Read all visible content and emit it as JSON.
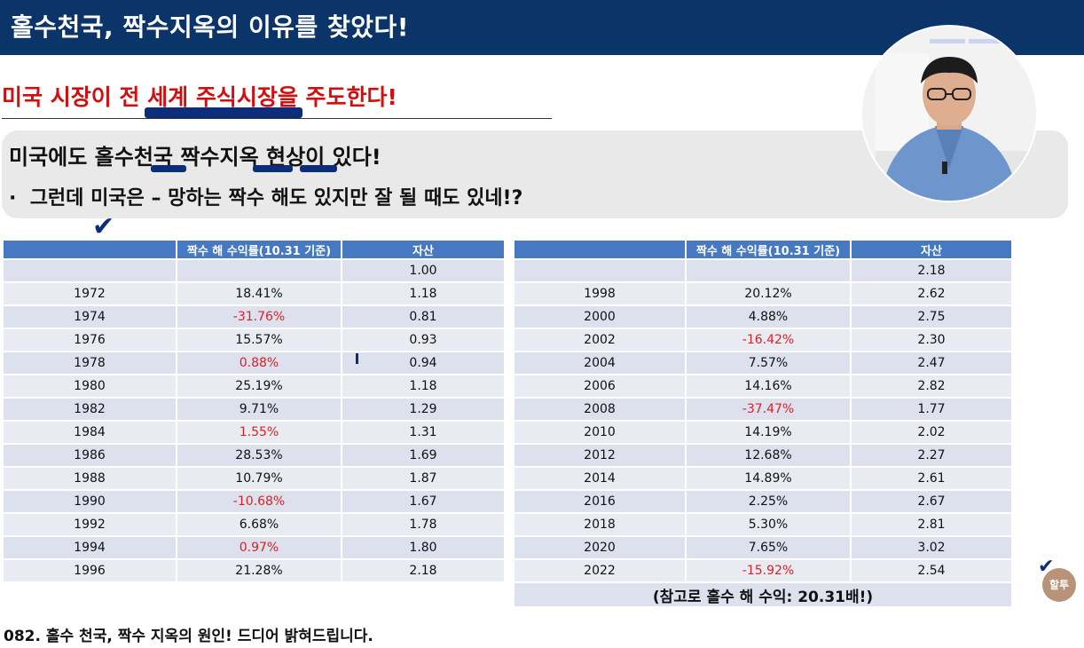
{
  "header": {
    "title": "홀수천국, 짝수지옥의 이유를 찾았다!"
  },
  "subtitle": "미국 시장이 전 세계 주식시장을 주도한다!",
  "callout": {
    "line1": "미국에도 홀수천국 짝수지옥 현상이 있다!",
    "bullet": "·",
    "line2": "그런데 미국은 – 망하는 짝수 해도 있지만 잘 될 때도 있네!?"
  },
  "tables": {
    "headers": {
      "blank": "",
      "return": "짝수 해 수익률(10.31 기준)",
      "asset": "자산"
    },
    "left": {
      "start_asset": "1.00",
      "rows": [
        {
          "year": "1972",
          "return": "18.41%",
          "asset": "1.18",
          "negative": false
        },
        {
          "year": "1974",
          "return": "-31.76%",
          "asset": "0.81",
          "negative": true
        },
        {
          "year": "1976",
          "return": "15.57%",
          "asset": "0.93",
          "negative": false
        },
        {
          "year": "1978",
          "return": "0.88%",
          "asset": "0.94",
          "negative": true
        },
        {
          "year": "1980",
          "return": "25.19%",
          "asset": "1.18",
          "negative": false
        },
        {
          "year": "1982",
          "return": "9.71%",
          "asset": "1.29",
          "negative": false
        },
        {
          "year": "1984",
          "return": "1.55%",
          "asset": "1.31",
          "negative": true
        },
        {
          "year": "1986",
          "return": "28.53%",
          "asset": "1.69",
          "negative": false
        },
        {
          "year": "1988",
          "return": "10.79%",
          "asset": "1.87",
          "negative": false
        },
        {
          "year": "1990",
          "return": "-10.68%",
          "asset": "1.67",
          "negative": true
        },
        {
          "year": "1992",
          "return": "6.68%",
          "asset": "1.78",
          "negative": false
        },
        {
          "year": "1994",
          "return": "0.97%",
          "asset": "1.80",
          "negative": true
        },
        {
          "year": "1996",
          "return": "21.28%",
          "asset": "2.18",
          "negative": false
        }
      ]
    },
    "right": {
      "start_asset": "2.18",
      "rows": [
        {
          "year": "1998",
          "return": "20.12%",
          "asset": "2.62",
          "negative": false
        },
        {
          "year": "2000",
          "return": "4.88%",
          "asset": "2.75",
          "negative": false
        },
        {
          "year": "2002",
          "return": "-16.42%",
          "asset": "2.30",
          "negative": true
        },
        {
          "year": "2004",
          "return": "7.57%",
          "asset": "2.47",
          "negative": false
        },
        {
          "year": "2006",
          "return": "14.16%",
          "asset": "2.82",
          "negative": false
        },
        {
          "year": "2008",
          "return": "-37.47%",
          "asset": "1.77",
          "negative": true
        },
        {
          "year": "2010",
          "return": "14.19%",
          "asset": "2.02",
          "negative": false
        },
        {
          "year": "2012",
          "return": "12.68%",
          "asset": "2.27",
          "negative": false
        },
        {
          "year": "2014",
          "return": "14.89%",
          "asset": "2.61",
          "negative": false
        },
        {
          "year": "2016",
          "return": "2.25%",
          "asset": "2.67",
          "negative": false
        },
        {
          "year": "2018",
          "return": "5.30%",
          "asset": "2.81",
          "negative": false
        },
        {
          "year": "2020",
          "return": "7.65%",
          "asset": "3.02",
          "negative": false
        },
        {
          "year": "2022",
          "return": "-15.92%",
          "asset": "2.54",
          "negative": true
        }
      ],
      "footnote": "(참고로 홀수 해 수익: 20.31배!)"
    }
  },
  "badge": {
    "label": "할투"
  },
  "caption": "082. 홀수 천국, 짝수 지옥의 원인! 드디어 밝혀드립니다.",
  "colors": {
    "header_bg": "#0b3468",
    "table_header": "#4779c3",
    "negative_text": "#e02020",
    "subtitle_red": "#d01010"
  }
}
